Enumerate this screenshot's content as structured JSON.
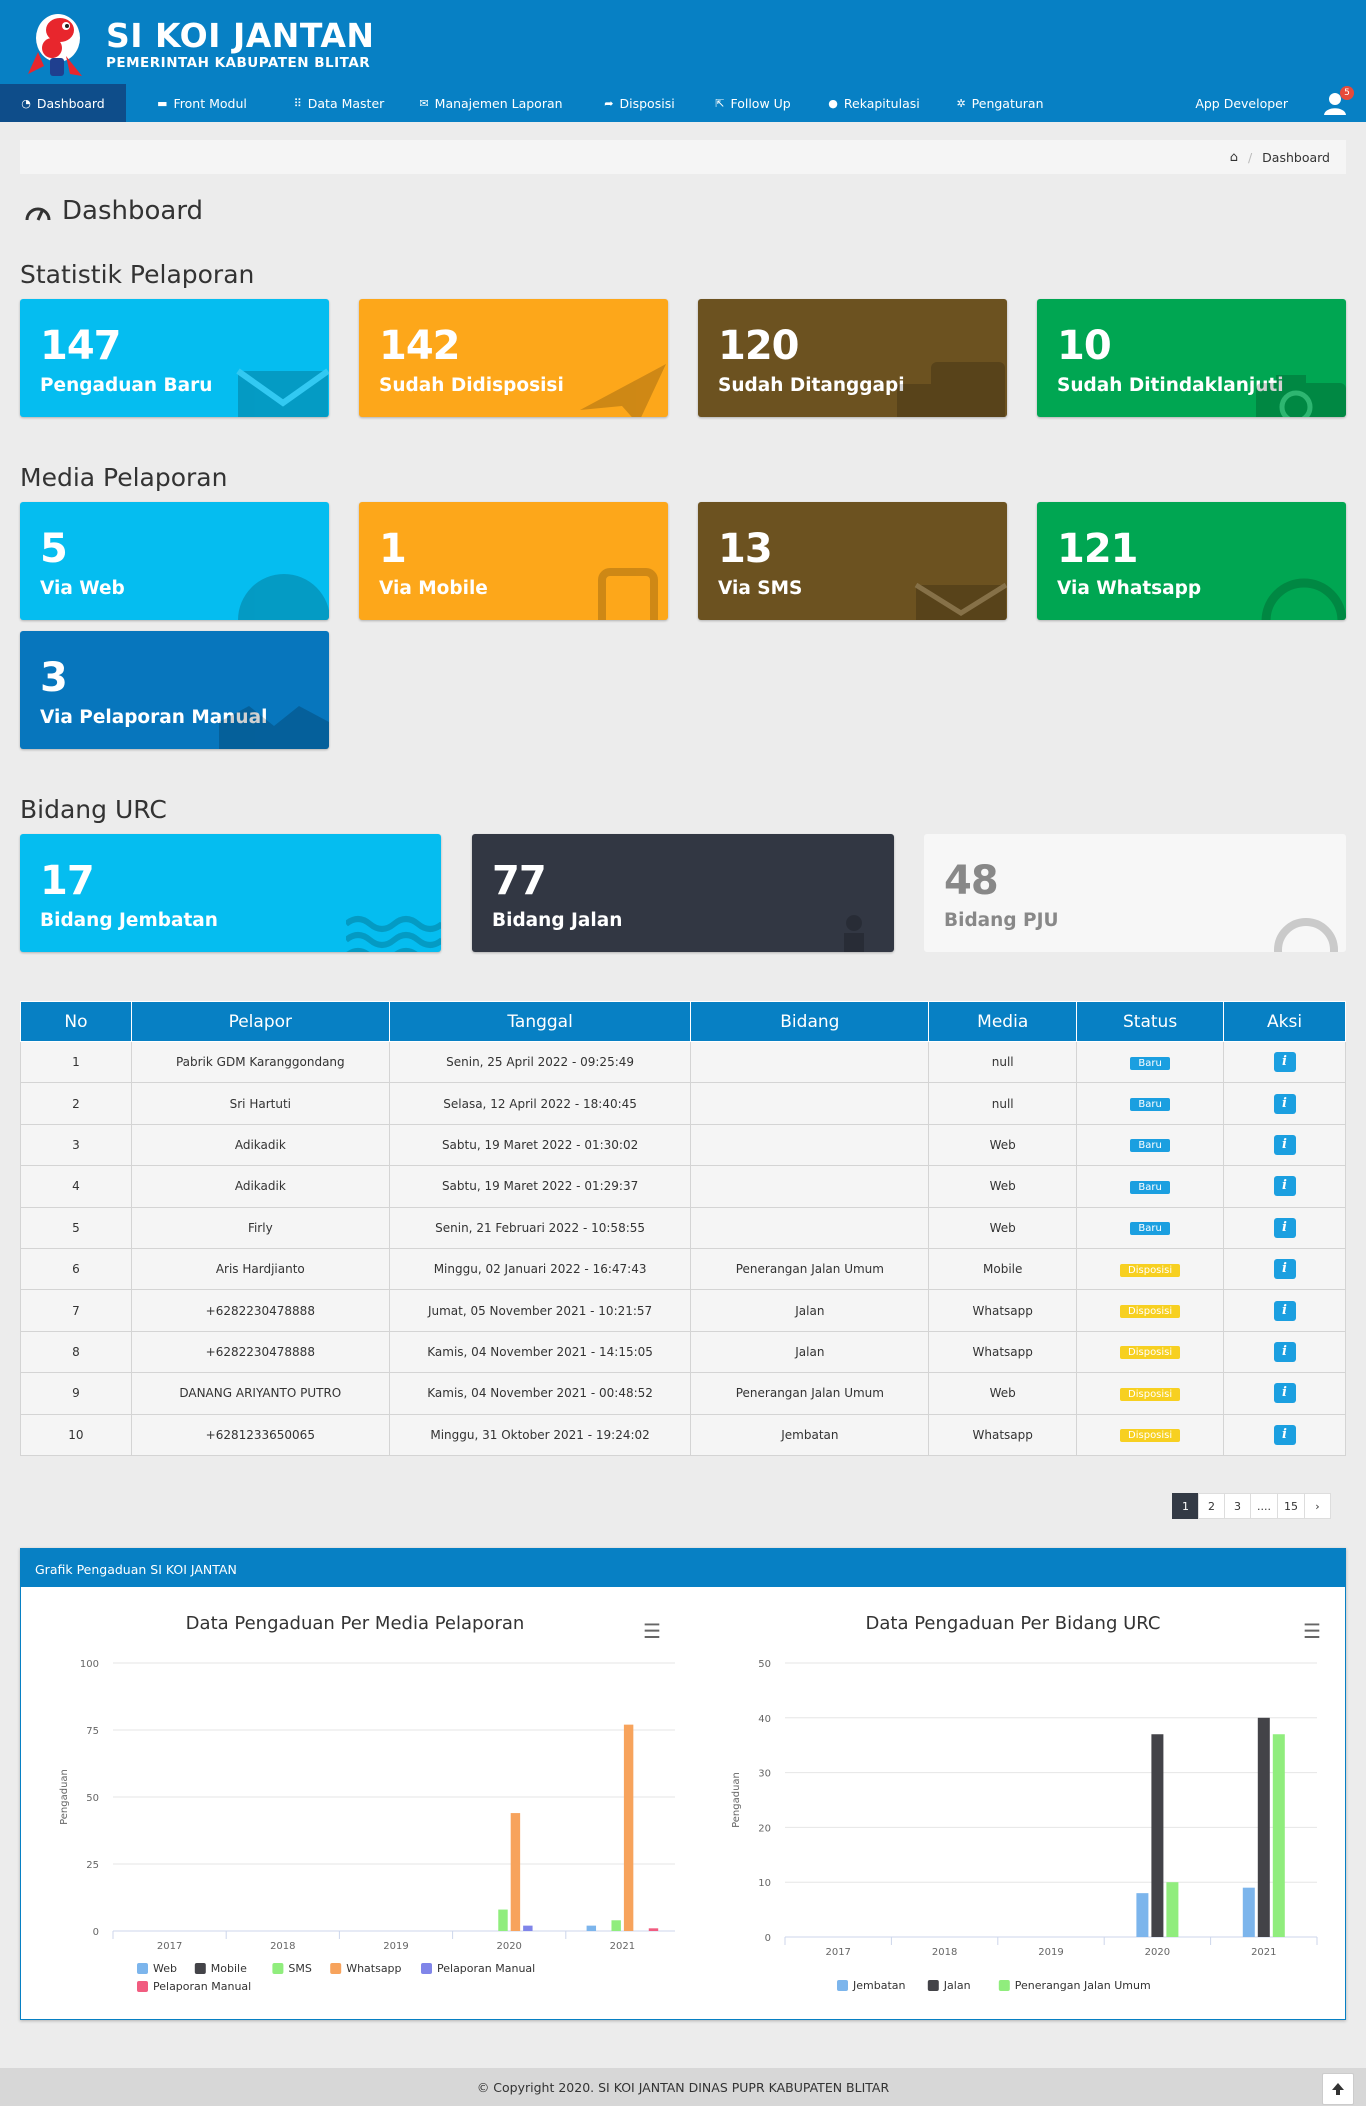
{
  "header": {
    "title": "SI KOI JANTAN",
    "subtitle": "PEMERINTAH KABUPATEN BLITAR",
    "logo": "koi-fish-mascot"
  },
  "nav": {
    "items": [
      {
        "label": "Dashboard",
        "icon": "gauge-icon"
      },
      {
        "label": "Front Modul",
        "icon": "monitor-icon"
      },
      {
        "label": "Data Master",
        "icon": "grid-icon"
      },
      {
        "label": "Manajemen Laporan",
        "icon": "envelope-icon"
      },
      {
        "label": "Disposisi",
        "icon": "share-icon"
      },
      {
        "label": "Follow Up",
        "icon": "external-link-icon"
      },
      {
        "label": "Rekapitulasi",
        "icon": "globe-icon"
      },
      {
        "label": "Pengaturan",
        "icon": "gear-icon"
      }
    ],
    "app_developer": "App Developer",
    "user_badge": "5"
  },
  "breadcrumb": {
    "current": "Dashboard"
  },
  "page_title": "Dashboard",
  "sections": {
    "statistik": "Statistik Pelaporan",
    "media": "Media Pelaporan",
    "bidang": "Bidang URC"
  },
  "statistik_cards": [
    {
      "value": "147",
      "label": "Pengaduan Baru",
      "color": "#05bdf0",
      "icon": "envelope-icon"
    },
    {
      "value": "142",
      "label": "Sudah Didisposisi",
      "color": "#fda71a",
      "icon": "paper-plane-icon"
    },
    {
      "value": "120",
      "label": "Sudah Ditanggapi",
      "color": "#6c5220",
      "icon": "chat-icon"
    },
    {
      "value": "10",
      "label": "Sudah Ditindaklanjuti",
      "color": "#00a652",
      "icon": "camera-icon"
    }
  ],
  "media_cards": [
    {
      "value": "5",
      "label": "Via Web",
      "color": "#05bdf0",
      "icon": "globe-icon"
    },
    {
      "value": "1",
      "label": "Via Mobile",
      "color": "#fda71a",
      "icon": "mobile-icon"
    },
    {
      "value": "13",
      "label": "Via SMS",
      "color": "#6c5220",
      "icon": "envelope-icon"
    },
    {
      "value": "121",
      "label": "Via Whatsapp",
      "color": "#00a652",
      "icon": "whatsapp-icon"
    },
    {
      "value": "3",
      "label": "Via Pelaporan Manual",
      "color": "#0776bd",
      "icon": "handshake-icon"
    }
  ],
  "bidang_cards": [
    {
      "value": "17",
      "label": "Bidang Jembatan",
      "color": "#05bdf0",
      "icon": "water-icon"
    },
    {
      "value": "77",
      "label": "Bidang Jalan",
      "color": "#323743",
      "icon": "road-icon"
    },
    {
      "value": "48",
      "label": "Bidang PJU",
      "color": "#f7f7f7",
      "icon": "lightbulb-icon"
    }
  ],
  "table": {
    "headers": [
      "No",
      "Pelapor",
      "Tanggal",
      "Bidang",
      "Media",
      "Status",
      "Aksi"
    ],
    "rows": [
      {
        "no": "1",
        "pelapor": "Pabrik GDM Karanggondang",
        "tanggal": "Senin, 25 April 2022 - 09:25:49",
        "bidang": "",
        "media": "null",
        "status": "Baru"
      },
      {
        "no": "2",
        "pelapor": "Sri Hartuti",
        "tanggal": "Selasa, 12 April 2022 - 18:40:45",
        "bidang": "",
        "media": "null",
        "status": "Baru"
      },
      {
        "no": "3",
        "pelapor": "Adikadik",
        "tanggal": "Sabtu, 19 Maret 2022 - 01:30:02",
        "bidang": "",
        "media": "Web",
        "status": "Baru"
      },
      {
        "no": "4",
        "pelapor": "Adikadik",
        "tanggal": "Sabtu, 19 Maret 2022 - 01:29:37",
        "bidang": "",
        "media": "Web",
        "status": "Baru"
      },
      {
        "no": "5",
        "pelapor": "Firly",
        "tanggal": "Senin, 21 Februari 2022 - 10:58:55",
        "bidang": "",
        "media": "Web",
        "status": "Baru"
      },
      {
        "no": "6",
        "pelapor": "Aris Hardjianto",
        "tanggal": "Minggu, 02 Januari 2022 - 16:47:43",
        "bidang": "Penerangan Jalan Umum",
        "media": "Mobile",
        "status": "Disposisi"
      },
      {
        "no": "7",
        "pelapor": "+6282230478888",
        "tanggal": "Jumat, 05 November 2021 - 10:21:57",
        "bidang": "Jalan",
        "media": "Whatsapp",
        "status": "Disposisi"
      },
      {
        "no": "8",
        "pelapor": "+6282230478888",
        "tanggal": "Kamis, 04 November 2021 - 14:15:05",
        "bidang": "Jalan",
        "media": "Whatsapp",
        "status": "Disposisi"
      },
      {
        "no": "9",
        "pelapor": "DANANG ARIYANTO PUTRO",
        "tanggal": "Kamis, 04 November 2021 - 00:48:52",
        "bidang": "Penerangan Jalan Umum",
        "media": "Web",
        "status": "Disposisi"
      },
      {
        "no": "10",
        "pelapor": "+6281233650065",
        "tanggal": "Minggu, 31 Oktober 2021 - 19:24:02",
        "bidang": "Jembatan",
        "media": "Whatsapp",
        "status": "Disposisi"
      }
    ]
  },
  "pagination": [
    "1",
    "2",
    "3",
    "....",
    "15",
    "›"
  ],
  "panel_title": "Grafik Pengaduan SI KOI JANTAN",
  "chart_data": [
    {
      "type": "bar",
      "title": "Data Pengaduan Per Media Pelaporan",
      "xlabel": "",
      "ylabel": "Pengaduan",
      "ylim": [
        0,
        100
      ],
      "yticks": [
        0,
        25,
        50,
        75,
        100
      ],
      "categories": [
        "2017",
        "2018",
        "2019",
        "2020",
        "2021"
      ],
      "legend_position": "bottom",
      "series": [
        {
          "name": "Web",
          "color": "#7cb5ec",
          "values": [
            0,
            0,
            0,
            0,
            2
          ]
        },
        {
          "name": "Mobile",
          "color": "#434348",
          "values": [
            0,
            0,
            0,
            0,
            0
          ]
        },
        {
          "name": "SMS",
          "color": "#90ed7d",
          "values": [
            0,
            0,
            0,
            8,
            4
          ]
        },
        {
          "name": "Whatsapp",
          "color": "#f7a35c",
          "values": [
            0,
            0,
            0,
            44,
            77
          ]
        },
        {
          "name": "Pelaporan Manual",
          "color": "#8085e9",
          "values": [
            0,
            0,
            0,
            2,
            0
          ]
        },
        {
          "name": "Pelaporan Manual",
          "color": "#f15c80",
          "values": [
            0,
            0,
            0,
            0,
            1
          ]
        }
      ]
    },
    {
      "type": "bar",
      "title": "Data Pengaduan Per Bidang URC",
      "xlabel": "",
      "ylabel": "Pengaduan",
      "ylim": [
        0,
        50
      ],
      "yticks": [
        0,
        10,
        20,
        30,
        40,
        50
      ],
      "categories": [
        "2017",
        "2018",
        "2019",
        "2020",
        "2021"
      ],
      "legend_position": "bottom",
      "series": [
        {
          "name": "Jembatan",
          "color": "#7cb5ec",
          "values": [
            0,
            0,
            0,
            8,
            9
          ]
        },
        {
          "name": "Jalan",
          "color": "#434348",
          "values": [
            0,
            0,
            0,
            37,
            40
          ]
        },
        {
          "name": "Penerangan Jalan Umum",
          "color": "#90ed7d",
          "values": [
            0,
            0,
            0,
            10,
            37
          ]
        }
      ]
    }
  ],
  "footer": "© Copyright 2020. SI KOI JANTAN DINAS PUPR KABUPATEN BLITAR"
}
